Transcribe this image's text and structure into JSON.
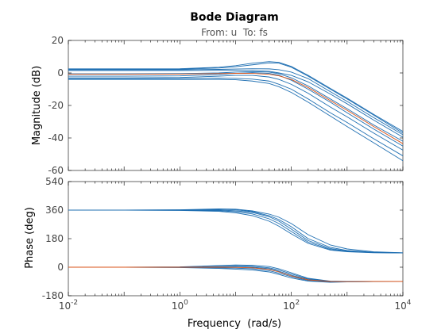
{
  "chart_data": {
    "type": "line",
    "title": "Bode Diagram",
    "subtitle": "From: u  To: fs",
    "xlabel": "Frequency  (rad/s)",
    "xscale": "log",
    "xlim": [
      0.01,
      10000
    ],
    "x_ticks": [
      {
        "value": 0.01,
        "base": "10",
        "exp": "-2"
      },
      {
        "value": 1,
        "base": "10",
        "exp": "0"
      },
      {
        "value": 100,
        "base": "10",
        "exp": "2"
      },
      {
        "value": 10000,
        "base": "10",
        "exp": "4"
      }
    ],
    "grid": false,
    "colors": {
      "series": "#1f6fb2",
      "nominal": "#d95319"
    },
    "magnitude": {
      "ylabel": "Magnitude (dB)",
      "ylim": [
        -60,
        20
      ],
      "yticks": [
        20,
        0,
        -20,
        -40,
        -60
      ],
      "series": [
        {
          "x": [
            0.01,
            0.1,
            1,
            5,
            10,
            20,
            40,
            60,
            100,
            200,
            500,
            1000,
            3000,
            10000
          ],
          "y": [
            2.5,
            2.5,
            2.6,
            3.5,
            4.5,
            6.0,
            7.0,
            6.5,
            4.0,
            -1.5,
            -9.5,
            -15.5,
            -25.5,
            -36.0
          ]
        },
        {
          "x": [
            0.01,
            0.1,
            1,
            5,
            10,
            20,
            40,
            60,
            100,
            200,
            500,
            1000,
            3000,
            10000
          ],
          "y": [
            2.2,
            2.2,
            2.3,
            3.0,
            3.8,
            5.0,
            6.2,
            6.0,
            3.5,
            -2.0,
            -10.0,
            -16.0,
            -26.0,
            -37.0
          ]
        },
        {
          "x": [
            0.01,
            0.1,
            1,
            5,
            10,
            20,
            40,
            60,
            100,
            200,
            500,
            1000,
            3000,
            10000
          ],
          "y": [
            2.0,
            2.0,
            2.0,
            2.2,
            2.4,
            2.6,
            2.5,
            2.0,
            0.5,
            -3.5,
            -11.5,
            -17.5,
            -27.5,
            -38.0
          ]
        },
        {
          "x": [
            0.01,
            0.1,
            1,
            5,
            10,
            20,
            40,
            60,
            100,
            200,
            500,
            1000,
            3000,
            10000
          ],
          "y": [
            1.5,
            1.5,
            1.5,
            1.6,
            1.6,
            1.5,
            1.0,
            0.0,
            -1.5,
            -5.5,
            -13.0,
            -19.0,
            -29.0,
            -39.5
          ]
        },
        {
          "x": [
            0.01,
            0.1,
            1,
            5,
            10,
            20,
            40,
            60,
            100,
            200,
            500,
            1000,
            3000,
            10000
          ],
          "y": [
            -0.5,
            -0.5,
            -0.4,
            0.0,
            0.5,
            0.8,
            0.5,
            -0.5,
            -3.0,
            -8.0,
            -16.0,
            -22.0,
            -32.0,
            -42.0
          ]
        },
        {
          "x": [
            0.01,
            0.1,
            1,
            5,
            10,
            20,
            40,
            60,
            100,
            200,
            500,
            1000,
            3000,
            10000
          ],
          "y": [
            -2.0,
            -2.0,
            -1.8,
            -1.0,
            -0.3,
            0.2,
            -0.3,
            -1.5,
            -4.5,
            -10.0,
            -18.0,
            -24.5,
            -34.5,
            -45.0
          ]
        },
        {
          "x": [
            0.01,
            0.1,
            1,
            5,
            10,
            20,
            40,
            60,
            100,
            200,
            500,
            1000,
            3000,
            10000
          ],
          "y": [
            -3.0,
            -3.0,
            -2.8,
            -2.0,
            -1.5,
            -1.5,
            -2.5,
            -4.0,
            -7.0,
            -12.5,
            -21.0,
            -27.0,
            -37.0,
            -47.5
          ]
        },
        {
          "x": [
            0.01,
            0.1,
            1,
            5,
            10,
            20,
            40,
            60,
            100,
            200,
            500,
            1000,
            3000,
            10000
          ],
          "y": [
            -3.5,
            -3.5,
            -3.5,
            -3.2,
            -3.3,
            -3.8,
            -5.0,
            -7.0,
            -10.0,
            -16.0,
            -24.5,
            -30.5,
            -40.5,
            -51.0
          ]
        },
        {
          "x": [
            0.01,
            0.1,
            1,
            5,
            10,
            20,
            40,
            60,
            100,
            200,
            500,
            1000,
            3000,
            10000
          ],
          "y": [
            -4.0,
            -4.0,
            -4.0,
            -4.0,
            -4.2,
            -5.0,
            -6.5,
            -8.5,
            -12.0,
            -18.0,
            -26.5,
            -33.0,
            -43.0,
            -54.0
          ]
        }
      ],
      "nominal": {
        "x": [
          0.01,
          0.1,
          1,
          5,
          10,
          20,
          40,
          60,
          100,
          200,
          500,
          1000,
          3000,
          10000
        ],
        "y": [
          -0.8,
          -0.8,
          -0.7,
          -0.4,
          -0.2,
          -0.3,
          -0.8,
          -1.8,
          -4.0,
          -9.0,
          -17.0,
          -23.0,
          -33.0,
          -43.5
        ]
      }
    },
    "phase": {
      "ylabel": "Phase (deg)",
      "ylim": [
        -180,
        540
      ],
      "yticks": [
        540,
        360,
        180,
        0,
        -180
      ],
      "series": [
        {
          "x": [
            0.01,
            0.1,
            1,
            5,
            10,
            20,
            40,
            60,
            100,
            200,
            500,
            1000,
            3000,
            10000
          ],
          "y": [
            360,
            360,
            362,
            368,
            366,
            355,
            335,
            315,
            275,
            205,
            140,
            115,
            97,
            91
          ]
        },
        {
          "x": [
            0.01,
            0.1,
            1,
            5,
            10,
            20,
            40,
            60,
            100,
            200,
            500,
            1000,
            3000,
            10000
          ],
          "y": [
            360,
            360,
            361,
            365,
            362,
            350,
            325,
            300,
            255,
            180,
            125,
            105,
            94,
            90
          ]
        },
        {
          "x": [
            0.01,
            0.1,
            1,
            5,
            10,
            20,
            40,
            60,
            100,
            200,
            500,
            1000,
            3000,
            10000
          ],
          "y": [
            360,
            360,
            360,
            360,
            356,
            345,
            318,
            290,
            240,
            168,
            118,
            101,
            93,
            90
          ]
        },
        {
          "x": [
            0.01,
            0.1,
            1,
            5,
            10,
            20,
            40,
            60,
            100,
            200,
            500,
            1000,
            3000,
            10000
          ],
          "y": [
            360,
            360,
            359,
            356,
            350,
            336,
            305,
            275,
            225,
            158,
            112,
            99,
            92,
            90
          ]
        },
        {
          "x": [
            0.01,
            0.1,
            1,
            5,
            10,
            20,
            40,
            60,
            100,
            200,
            500,
            1000,
            3000,
            10000
          ],
          "y": [
            360,
            360,
            358,
            352,
            343,
            325,
            290,
            258,
            210,
            150,
            108,
            97,
            91,
            90
          ]
        },
        {
          "x": [
            0.01,
            0.1,
            1,
            5,
            10,
            20,
            40,
            60,
            100,
            200,
            500,
            1000,
            3000,
            10000
          ],
          "y": [
            0,
            0,
            2,
            10,
            14,
            12,
            4,
            -10,
            -35,
            -70,
            -88,
            -90,
            -90,
            -90
          ]
        },
        {
          "x": [
            0.01,
            0.1,
            1,
            5,
            10,
            20,
            40,
            60,
            100,
            200,
            500,
            1000,
            3000,
            10000
          ],
          "y": [
            0,
            0,
            1,
            8,
            10,
            6,
            -4,
            -18,
            -42,
            -74,
            -89,
            -90,
            -90,
            -90
          ]
        },
        {
          "x": [
            0.01,
            0.1,
            1,
            5,
            10,
            20,
            40,
            60,
            100,
            200,
            500,
            1000,
            3000,
            10000
          ],
          "y": [
            0,
            0,
            0,
            2,
            3,
            0,
            -10,
            -26,
            -50,
            -78,
            -90,
            -91,
            -90,
            -90
          ]
        },
        {
          "x": [
            0.01,
            0.1,
            1,
            5,
            10,
            20,
            40,
            60,
            100,
            200,
            500,
            1000,
            3000,
            10000
          ],
          "y": [
            0,
            0,
            -1,
            -4,
            -6,
            -10,
            -22,
            -38,
            -60,
            -84,
            -93,
            -92,
            -90,
            -90
          ]
        },
        {
          "x": [
            0.01,
            0.1,
            1,
            5,
            10,
            20,
            40,
            60,
            100,
            200,
            500,
            1000,
            3000,
            10000
          ],
          "y": [
            0,
            0,
            -2,
            -8,
            -12,
            -18,
            -30,
            -46,
            -68,
            -88,
            -95,
            -93,
            -91,
            -90
          ]
        }
      ],
      "nominal": {
        "x": [
          0.01,
          0.1,
          1,
          5,
          10,
          20,
          40,
          60,
          100,
          200,
          500,
          1000,
          3000,
          10000
        ],
        "y": [
          0,
          0,
          0,
          0,
          -1,
          -4,
          -14,
          -30,
          -55,
          -80,
          -90,
          -91,
          -90,
          -90
        ]
      }
    }
  }
}
